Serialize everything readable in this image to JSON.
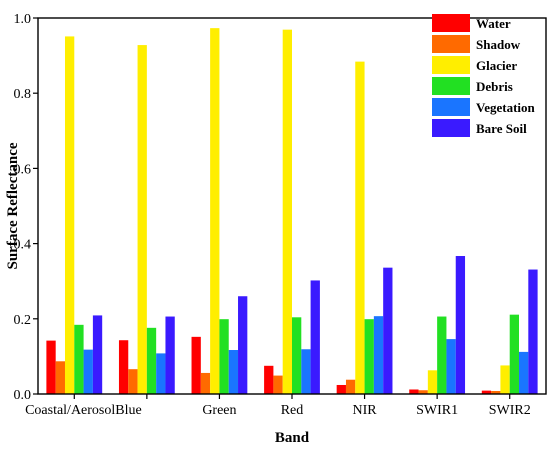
{
  "chart_data": {
    "type": "bar",
    "xlabel": "Band",
    "ylabel": "Surface Reflectance",
    "ylim": [
      0,
      1.0
    ],
    "yticks": [
      "0.0",
      "0.2",
      "0.4",
      "0.6",
      "0.8",
      "1.0"
    ],
    "categories": [
      "Coastal/Aerosol",
      "Blue",
      "Green",
      "Red",
      "NIR",
      "SWIR1",
      "SWIR2"
    ],
    "legend_position": "top-right",
    "grid": false,
    "series": [
      {
        "name": "Water",
        "color": "#ff0000",
        "values": [
          0.142,
          0.143,
          0.152,
          0.075,
          0.024,
          0.012,
          0.009
        ]
      },
      {
        "name": "Shadow",
        "color": "#ff6a00",
        "values": [
          0.087,
          0.066,
          0.056,
          0.049,
          0.038,
          0.01,
          0.008
        ]
      },
      {
        "name": "Glacier",
        "color": "#ffee00",
        "values": [
          0.951,
          0.928,
          0.973,
          0.969,
          0.884,
          0.063,
          0.076
        ]
      },
      {
        "name": "Debris",
        "color": "#22e022",
        "values": [
          0.184,
          0.176,
          0.199,
          0.204,
          0.199,
          0.206,
          0.211
        ]
      },
      {
        "name": "Vegetation",
        "color": "#1a75ff",
        "values": [
          0.118,
          0.108,
          0.117,
          0.119,
          0.207,
          0.146,
          0.112
        ]
      },
      {
        "name": "Bare Soil",
        "color": "#3a1aff",
        "values": [
          0.209,
          0.206,
          0.26,
          0.302,
          0.336,
          0.367,
          0.331
        ]
      }
    ]
  }
}
